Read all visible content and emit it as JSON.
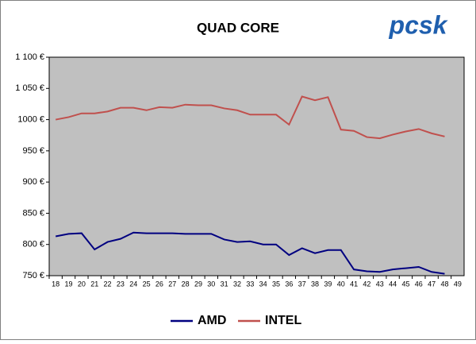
{
  "chart_data": {
    "type": "line",
    "title": "QUAD CORE",
    "logo": "pcsk",
    "categories": [
      "18",
      "19",
      "20",
      "21",
      "22",
      "23",
      "24",
      "25",
      "26",
      "27",
      "28",
      "29",
      "30",
      "31",
      "32",
      "33",
      "34",
      "35",
      "36",
      "37",
      "38",
      "39",
      "40",
      "41",
      "42",
      "43",
      "44",
      "45",
      "46",
      "47",
      "48",
      "49"
    ],
    "series": [
      {
        "name": "AMD",
        "color": "#000080",
        "values": [
          813,
          817,
          818,
          792,
          804,
          809,
          819,
          818,
          818,
          818,
          817,
          817,
          817,
          808,
          804,
          805,
          800,
          800,
          783,
          794,
          786,
          791,
          791,
          760,
          757,
          756,
          760,
          762,
          764,
          756,
          753,
          null
        ]
      },
      {
        "name": "INTEL",
        "color": "#c0504d",
        "values": [
          1000,
          1004,
          1010,
          1010,
          1013,
          1019,
          1019,
          1015,
          1020,
          1019,
          1024,
          1023,
          1023,
          1018,
          1015,
          1008,
          1008,
          1008,
          992,
          1037,
          1031,
          1036,
          984,
          982,
          972,
          970,
          976,
          981,
          985,
          978,
          973,
          null
        ]
      }
    ],
    "ylim": [
      750,
      1100
    ],
    "yticks": [
      {
        "value": 750,
        "label": "750 €"
      },
      {
        "value": 800,
        "label": "800 €"
      },
      {
        "value": 850,
        "label": "850 €"
      },
      {
        "value": 900,
        "label": "900 €"
      },
      {
        "value": 950,
        "label": "950 €"
      },
      {
        "value": 1000,
        "label": "1000 €"
      },
      {
        "value": 1050,
        "label": "1 050 €"
      },
      {
        "value": 1100,
        "label": "1 100 €"
      }
    ],
    "legend": "bottom",
    "plot_background": "#c0c0c0"
  }
}
